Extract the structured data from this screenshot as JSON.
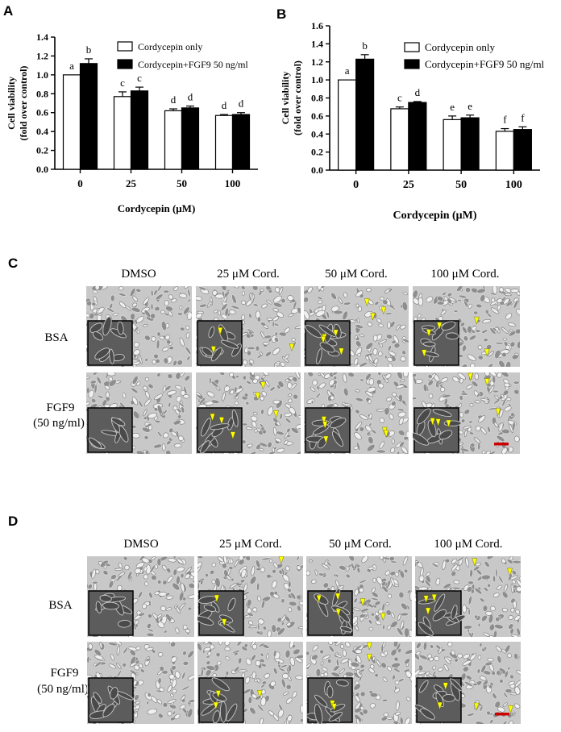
{
  "panels": {
    "A": "A",
    "B": "B",
    "C": "C",
    "D": "D"
  },
  "chart_data": [
    {
      "type": "bar",
      "panel": "A",
      "categories": [
        "0",
        "25",
        "50",
        "100"
      ],
      "series": [
        {
          "name": "Cordycepin only",
          "values": [
            1.0,
            0.77,
            0.62,
            0.57
          ],
          "errors": [
            0.0,
            0.05,
            0.02,
            0.01
          ],
          "letters": [
            "a",
            "c",
            "d",
            "d"
          ],
          "fill": "#ffffff"
        },
        {
          "name": "Cordycepin+FGF9 50 ng/ml",
          "values": [
            1.12,
            0.83,
            0.65,
            0.58
          ],
          "errors": [
            0.05,
            0.04,
            0.02,
            0.02
          ],
          "letters": [
            "b",
            "c",
            "d",
            "d"
          ],
          "fill": "#000000"
        }
      ],
      "xlabel": "Cordycepin (μM)",
      "ylabel": "Cell viability",
      "ylabel2": "(fold over control)",
      "ylim": [
        0.0,
        1.4
      ],
      "yticks": [
        "0.0",
        "0.2",
        "0.4",
        "0.6",
        "0.8",
        "1.0",
        "1.2",
        "1.4"
      ],
      "legend_position": "top-right",
      "grid": false
    },
    {
      "type": "bar",
      "panel": "B",
      "categories": [
        "0",
        "25",
        "50",
        "100"
      ],
      "series": [
        {
          "name": "Cordycepin only",
          "values": [
            1.0,
            0.68,
            0.56,
            0.43
          ],
          "errors": [
            0.0,
            0.02,
            0.04,
            0.03
          ],
          "letters": [
            "a",
            "c",
            "e",
            "f"
          ],
          "fill": "#ffffff"
        },
        {
          "name": "Cordycepin+FGF9 50 ng/ml",
          "values": [
            1.23,
            0.75,
            0.58,
            0.45
          ],
          "errors": [
            0.05,
            0.01,
            0.03,
            0.03
          ],
          "letters": [
            "b",
            "d",
            "e",
            "f"
          ],
          "fill": "#000000"
        }
      ],
      "xlabel": "Cordycepin (μM)",
      "ylabel": "Cell viability",
      "ylabel2": "(fold over control)",
      "ylim": [
        0.0,
        1.6
      ],
      "yticks": [
        "0.0",
        "0.2",
        "0.4",
        "0.6",
        "0.8",
        "1.0",
        "1.2",
        "1.4",
        "1.6"
      ],
      "legend_position": "top-right",
      "grid": false
    }
  ],
  "micrographs": {
    "columns": [
      "DMSO",
      "25 μM Cord.",
      "50 μM Cord.",
      "100 μM Cord."
    ],
    "row_bsa": "BSA",
    "row_fgf9_line1": "FGF9",
    "row_fgf9_line2": "(50 ng/ml)",
    "scale_bar_color": "#cc0000",
    "arrowhead_color": "#ffff00"
  }
}
